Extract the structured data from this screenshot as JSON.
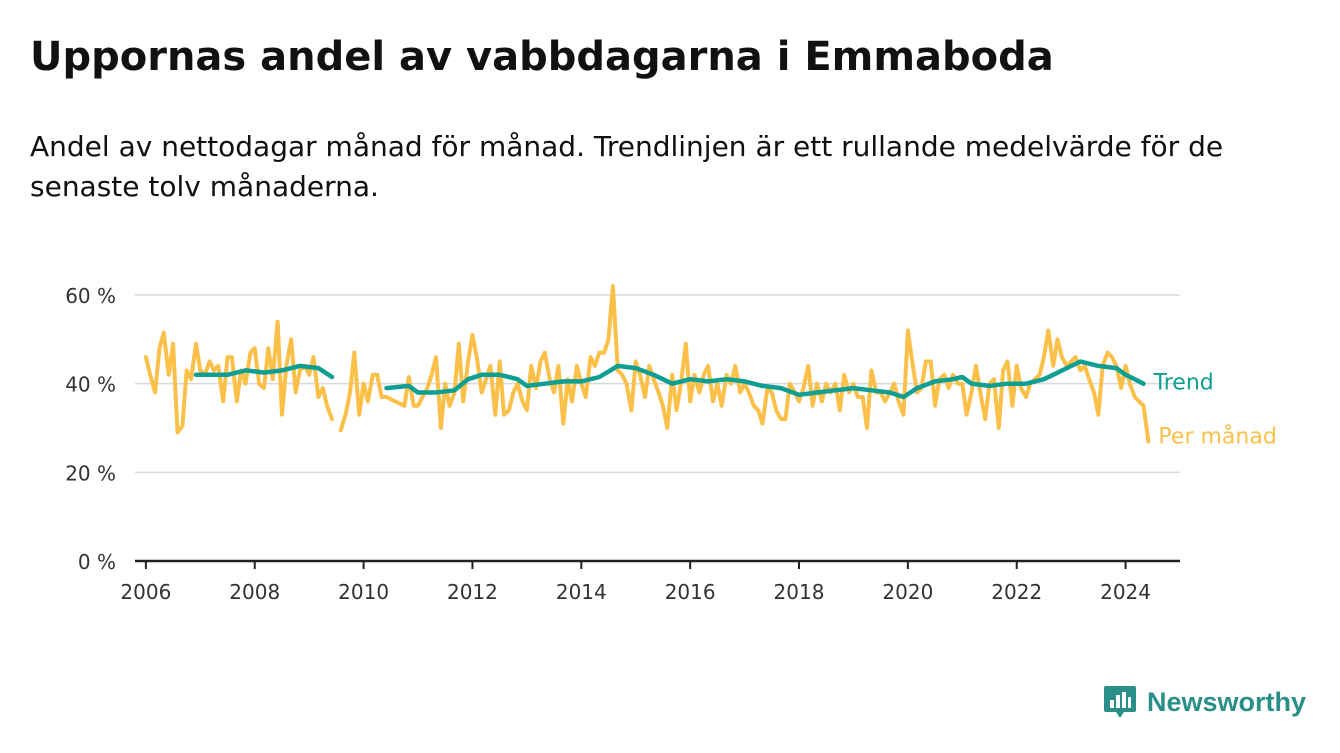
{
  "title": "Uppornas andel av vabbdagarna i Emmaboda",
  "subtitle": "Andel av nettodagar månad för månad. Trendlinjen är ett rullande medelvärde för de senaste tolv månaderna.",
  "brand": {
    "name": "Newsworthy",
    "icon": "newsworthy-logo-icon"
  },
  "colors": {
    "monthly": "#fbc04a",
    "trend": "#0f9e92",
    "axis": "#222222",
    "grid": "#d9d9d9",
    "text": "#111111",
    "brand": "#2a8f89"
  },
  "chart_data": {
    "type": "line",
    "title": "Uppornas andel av vabbdagarna i Emmaboda",
    "x_unit": "year",
    "xlim": [
      2005.8,
      2025.0
    ],
    "ylim": [
      0,
      60
    ],
    "y_ticks": [
      0,
      20,
      40,
      60
    ],
    "y_tick_labels": [
      "0 %",
      "20 %",
      "40 %",
      "60 %"
    ],
    "x_ticks": [
      2006,
      2008,
      2010,
      2012,
      2014,
      2016,
      2018,
      2020,
      2022,
      2024
    ],
    "x_tick_labels": [
      "2006",
      "2008",
      "2010",
      "2012",
      "2014",
      "2016",
      "2018",
      "2020",
      "2022",
      "2024"
    ],
    "grid": "horizontal",
    "legend": "end-of-line labels",
    "series": [
      {
        "name": "Per månad",
        "color": "#fbc04a",
        "points": [
          [
            2006.0,
            46
          ],
          [
            2006.08,
            42
          ],
          [
            2006.17,
            38
          ],
          [
            2006.25,
            48
          ],
          [
            2006.33,
            51.5
          ],
          [
            2006.42,
            42
          ],
          [
            2006.5,
            49
          ],
          [
            2006.58,
            29
          ],
          [
            2006.67,
            30.5
          ],
          [
            2006.75,
            43
          ],
          [
            2006.83,
            41
          ],
          [
            2006.92,
            49
          ],
          [
            2007.0,
            43
          ],
          [
            2007.08,
            42
          ],
          [
            2007.17,
            45
          ],
          [
            2007.25,
            43
          ],
          [
            2007.33,
            44
          ],
          [
            2007.42,
            36
          ],
          [
            2007.5,
            46
          ],
          [
            2007.58,
            46
          ],
          [
            2007.67,
            36
          ],
          [
            2007.75,
            43
          ],
          [
            2007.83,
            40
          ],
          [
            2007.92,
            47
          ],
          [
            2008.0,
            48
          ],
          [
            2008.08,
            40
          ],
          [
            2008.17,
            39
          ],
          [
            2008.25,
            48
          ],
          [
            2008.33,
            41
          ],
          [
            2008.42,
            54
          ],
          [
            2008.5,
            33
          ],
          [
            2008.58,
            44
          ],
          [
            2008.67,
            50
          ],
          [
            2008.75,
            38
          ],
          [
            2008.83,
            43
          ],
          [
            2008.92,
            44
          ],
          [
            2009.0,
            42
          ],
          [
            2009.08,
            46
          ],
          [
            2009.17,
            37
          ],
          [
            2009.25,
            39
          ],
          [
            2009.33,
            35
          ],
          [
            2009.42,
            32
          ],
          [
            2009.58,
            29.5
          ],
          [
            2009.67,
            33
          ],
          [
            2009.75,
            38
          ],
          [
            2009.83,
            47
          ],
          [
            2009.92,
            33
          ],
          [
            2010.0,
            40
          ],
          [
            2010.08,
            36
          ],
          [
            2010.17,
            42
          ],
          [
            2010.25,
            42
          ],
          [
            2010.33,
            37
          ],
          [
            2010.42,
            37
          ],
          [
            2010.5,
            36.5
          ],
          [
            2010.58,
            36
          ],
          [
            2010.67,
            35.5
          ],
          [
            2010.75,
            35
          ],
          [
            2010.83,
            41.5
          ],
          [
            2010.92,
            35
          ],
          [
            2011.0,
            35
          ],
          [
            2011.08,
            37
          ],
          [
            2011.17,
            39
          ],
          [
            2011.25,
            42
          ],
          [
            2011.33,
            46
          ],
          [
            2011.42,
            30
          ],
          [
            2011.5,
            40
          ],
          [
            2011.58,
            35
          ],
          [
            2011.67,
            38
          ],
          [
            2011.75,
            49
          ],
          [
            2011.83,
            36
          ],
          [
            2011.92,
            45
          ],
          [
            2012.0,
            51
          ],
          [
            2012.08,
            46
          ],
          [
            2012.17,
            38
          ],
          [
            2012.25,
            41
          ],
          [
            2012.33,
            44
          ],
          [
            2012.42,
            33
          ],
          [
            2012.5,
            45
          ],
          [
            2012.58,
            33
          ],
          [
            2012.67,
            34
          ],
          [
            2012.75,
            38
          ],
          [
            2012.83,
            40
          ],
          [
            2012.92,
            36
          ],
          [
            2013.0,
            34
          ],
          [
            2013.08,
            44
          ],
          [
            2013.17,
            39
          ],
          [
            2013.25,
            45
          ],
          [
            2013.33,
            47
          ],
          [
            2013.42,
            41
          ],
          [
            2013.5,
            38
          ],
          [
            2013.58,
            44
          ],
          [
            2013.67,
            31
          ],
          [
            2013.75,
            41
          ],
          [
            2013.83,
            36
          ],
          [
            2013.92,
            44
          ],
          [
            2014.0,
            40
          ],
          [
            2014.08,
            37
          ],
          [
            2014.17,
            46
          ],
          [
            2014.25,
            44
          ],
          [
            2014.33,
            47
          ],
          [
            2014.42,
            47
          ],
          [
            2014.5,
            50
          ],
          [
            2014.58,
            62
          ],
          [
            2014.67,
            43
          ],
          [
            2014.75,
            42
          ],
          [
            2014.83,
            40
          ],
          [
            2014.92,
            34
          ],
          [
            2015.0,
            45
          ],
          [
            2015.08,
            42
          ],
          [
            2015.17,
            37
          ],
          [
            2015.25,
            44
          ],
          [
            2015.33,
            41
          ],
          [
            2015.42,
            38
          ],
          [
            2015.5,
            35
          ],
          [
            2015.58,
            30
          ],
          [
            2015.67,
            42
          ],
          [
            2015.75,
            34
          ],
          [
            2015.83,
            40
          ],
          [
            2015.92,
            49
          ],
          [
            2016.0,
            36
          ],
          [
            2016.08,
            42
          ],
          [
            2016.17,
            38
          ],
          [
            2016.25,
            42
          ],
          [
            2016.33,
            44
          ],
          [
            2016.42,
            36
          ],
          [
            2016.5,
            40
          ],
          [
            2016.58,
            35
          ],
          [
            2016.67,
            42
          ],
          [
            2016.75,
            40
          ],
          [
            2016.83,
            44
          ],
          [
            2016.92,
            38
          ],
          [
            2017.0,
            40
          ],
          [
            2017.08,
            38
          ],
          [
            2017.17,
            35
          ],
          [
            2017.25,
            34
          ],
          [
            2017.33,
            31
          ],
          [
            2017.42,
            39
          ],
          [
            2017.5,
            38
          ],
          [
            2017.58,
            34
          ],
          [
            2017.67,
            32
          ],
          [
            2017.75,
            32
          ],
          [
            2017.83,
            40
          ],
          [
            2017.92,
            38
          ],
          [
            2018.0,
            36
          ],
          [
            2018.08,
            39
          ],
          [
            2018.17,
            44
          ],
          [
            2018.25,
            35
          ],
          [
            2018.33,
            40
          ],
          [
            2018.42,
            36
          ],
          [
            2018.5,
            40
          ],
          [
            2018.58,
            38
          ],
          [
            2018.67,
            40
          ],
          [
            2018.75,
            34
          ],
          [
            2018.83,
            42
          ],
          [
            2018.92,
            38
          ],
          [
            2019.0,
            40
          ],
          [
            2019.08,
            37
          ],
          [
            2019.17,
            37
          ],
          [
            2019.25,
            30
          ],
          [
            2019.33,
            43
          ],
          [
            2019.42,
            38
          ],
          [
            2019.5,
            38
          ],
          [
            2019.58,
            36
          ],
          [
            2019.67,
            38
          ],
          [
            2019.75,
            40
          ],
          [
            2019.83,
            36
          ],
          [
            2019.92,
            33
          ],
          [
            2020.0,
            52
          ],
          [
            2020.08,
            45
          ],
          [
            2020.17,
            38
          ],
          [
            2020.25,
            39
          ],
          [
            2020.33,
            45
          ],
          [
            2020.42,
            45
          ],
          [
            2020.5,
            35
          ],
          [
            2020.58,
            41
          ],
          [
            2020.67,
            42
          ],
          [
            2020.75,
            39
          ],
          [
            2020.83,
            42
          ],
          [
            2020.92,
            40
          ],
          [
            2021.0,
            40
          ],
          [
            2021.08,
            33
          ],
          [
            2021.17,
            38
          ],
          [
            2021.25,
            44
          ],
          [
            2021.33,
            38
          ],
          [
            2021.42,
            32
          ],
          [
            2021.5,
            40
          ],
          [
            2021.58,
            41
          ],
          [
            2021.67,
            30
          ],
          [
            2021.75,
            43
          ],
          [
            2021.83,
            45
          ],
          [
            2021.92,
            35
          ],
          [
            2022.0,
            44
          ],
          [
            2022.08,
            39
          ],
          [
            2022.17,
            37
          ],
          [
            2022.25,
            40
          ],
          [
            2022.33,
            41
          ],
          [
            2022.42,
            42
          ],
          [
            2022.5,
            46
          ],
          [
            2022.58,
            52
          ],
          [
            2022.67,
            44
          ],
          [
            2022.75,
            50
          ],
          [
            2022.83,
            46
          ],
          [
            2022.92,
            44
          ],
          [
            2023.0,
            45
          ],
          [
            2023.08,
            46
          ],
          [
            2023.17,
            43
          ],
          [
            2023.25,
            44
          ],
          [
            2023.33,
            41
          ],
          [
            2023.42,
            38
          ],
          [
            2023.5,
            33
          ],
          [
            2023.58,
            44
          ],
          [
            2023.67,
            47
          ],
          [
            2023.75,
            46
          ],
          [
            2023.83,
            44
          ],
          [
            2023.92,
            39
          ],
          [
            2024.0,
            44
          ],
          [
            2024.08,
            40
          ],
          [
            2024.17,
            37
          ],
          [
            2024.25,
            36
          ],
          [
            2024.33,
            35
          ],
          [
            2024.42,
            27
          ]
        ]
      },
      {
        "name": "Trend",
        "color": "#0f9e92",
        "points": [
          [
            2006.92,
            42
          ],
          [
            2007.17,
            42
          ],
          [
            2007.5,
            42
          ],
          [
            2007.83,
            43
          ],
          [
            2008.17,
            42.5
          ],
          [
            2008.5,
            43
          ],
          [
            2008.83,
            44
          ],
          [
            2009.17,
            43.5
          ],
          [
            2009.42,
            41.5
          ],
          [
            2010.42,
            39
          ],
          [
            2010.83,
            39.5
          ],
          [
            2011.0,
            38
          ],
          [
            2011.33,
            38
          ],
          [
            2011.67,
            38.5
          ],
          [
            2011.92,
            41
          ],
          [
            2012.17,
            42
          ],
          [
            2012.5,
            42
          ],
          [
            2012.83,
            41
          ],
          [
            2013.0,
            39.5
          ],
          [
            2013.33,
            40
          ],
          [
            2013.67,
            40.5
          ],
          [
            2014.0,
            40.5
          ],
          [
            2014.33,
            41.5
          ],
          [
            2014.67,
            44
          ],
          [
            2015.0,
            43.5
          ],
          [
            2015.33,
            42
          ],
          [
            2015.67,
            40
          ],
          [
            2016.0,
            41
          ],
          [
            2016.33,
            40.5
          ],
          [
            2016.67,
            41
          ],
          [
            2017.0,
            40.5
          ],
          [
            2017.33,
            39.5
          ],
          [
            2017.67,
            39
          ],
          [
            2018.0,
            37.5
          ],
          [
            2018.33,
            38
          ],
          [
            2018.67,
            38.5
          ],
          [
            2019.0,
            39
          ],
          [
            2019.33,
            38.5
          ],
          [
            2019.67,
            38
          ],
          [
            2019.92,
            37
          ],
          [
            2020.17,
            39
          ],
          [
            2020.5,
            40.5
          ],
          [
            2020.83,
            41
          ],
          [
            2021.0,
            41.5
          ],
          [
            2021.17,
            40
          ],
          [
            2021.5,
            39.5
          ],
          [
            2021.83,
            40
          ],
          [
            2022.17,
            40
          ],
          [
            2022.5,
            41
          ],
          [
            2022.67,
            42
          ],
          [
            2022.92,
            43.5
          ],
          [
            2023.17,
            45
          ],
          [
            2023.5,
            44
          ],
          [
            2023.83,
            43.5
          ],
          [
            2024.0,
            42
          ],
          [
            2024.17,
            41
          ],
          [
            2024.33,
            40
          ]
        ]
      }
    ]
  }
}
